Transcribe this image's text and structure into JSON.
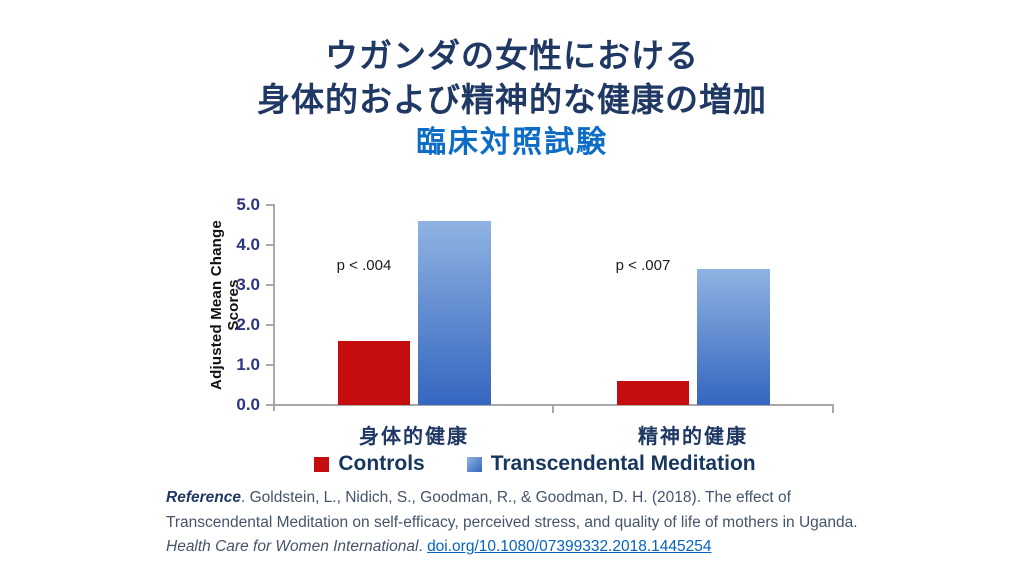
{
  "title": {
    "line1": "ウガンダの女性における",
    "line2": "身体的および精神的な健康の増加",
    "line3": "臨床対照試験"
  },
  "chart_data": {
    "type": "bar",
    "categories": [
      "身体的健康",
      "精神的健康"
    ],
    "series": [
      {
        "name": "Controls",
        "values": [
          1.6,
          0.6
        ],
        "color": "#c50d10"
      },
      {
        "name": "Transcendental Meditation",
        "values": [
          4.6,
          3.4
        ],
        "gradient": [
          "#8fb3e2",
          "#3566c0"
        ]
      }
    ],
    "annotations": [
      {
        "text": "p < .004",
        "group": 0
      },
      {
        "text": "p < .007",
        "group": 1
      }
    ],
    "ylabel": "Adjusted Mean Change Scores",
    "xlabel": "",
    "ylim": [
      0,
      5
    ],
    "yticks": [
      "5.0",
      "4.0",
      "3.0",
      "2.0",
      "1.0",
      "0.0"
    ],
    "grid": false,
    "legend_position": "bottom"
  },
  "reference": {
    "label": "Reference",
    "line1_rest": ". Goldstein, L., Nidich, S., Goodman, R., & Goodman, D. H. (2018). The effect of Transcendental Meditation on self-efficacy, perceived stress, and quality of life of mothers in Uganda. ",
    "journal": "Health Care for Women International",
    "separator": ". ",
    "doi": "doi.org/10.1080/07399332.2018.1445254"
  },
  "colors": {
    "title_navy": "#1f3864",
    "title_blue": "#0d6dc6",
    "controls_red": "#c50d10",
    "tm_blue_top": "#8fb3e2",
    "tm_blue_bottom": "#3566c0",
    "axis_gray": "#a8a8a8",
    "ytick_blue": "#2d3583",
    "legend_text": "#17375e",
    "reference_text": "#44546a",
    "link_blue": "#0563c1"
  }
}
